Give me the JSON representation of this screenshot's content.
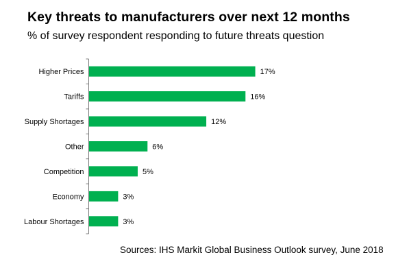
{
  "title": "Key threats to manufacturers  over next 12 months",
  "subtitle": "% of survey respondent responding to future threats question",
  "source": "Sources: IHS Markit Global Business Outlook survey, June 2018",
  "colors": {
    "bar": "#00B050",
    "axis": "#7F7F7F",
    "text": "#000000"
  },
  "chart_data": {
    "type": "bar",
    "orientation": "horizontal",
    "categories": [
      "Higher Prices",
      "Tariffs",
      "Supply Shortages",
      "Other",
      "Competition",
      "Economy",
      "Labour Shortages"
    ],
    "values": [
      17,
      16,
      12,
      6,
      5,
      3,
      3
    ],
    "value_labels": [
      "17%",
      "16%",
      "12%",
      "6%",
      "5%",
      "3%",
      "3%"
    ],
    "value_unit": "%",
    "xlim": [
      0,
      20
    ],
    "grid": false,
    "legend": "none"
  }
}
